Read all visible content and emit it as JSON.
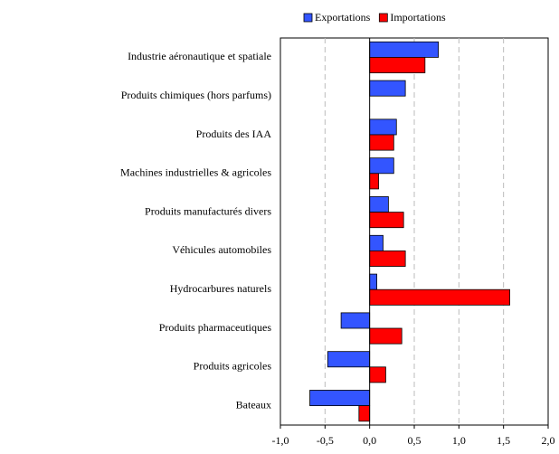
{
  "chart_data": {
    "type": "bar",
    "orientation": "horizontal",
    "categories": [
      "Industrie aéronautique et spatiale",
      "Produits chimiques (hors parfums)",
      "Produits des IAA",
      "Machines industrielles & agricoles",
      "Produits manufacturés divers",
      "Véhicules automobiles",
      "Hydrocarbures naturels",
      "Produits pharmaceutiques",
      "Produits agricoles",
      "Bateaux"
    ],
    "series": [
      {
        "name": "Exportations",
        "color": "#3355ff",
        "values": [
          0.77,
          0.4,
          0.3,
          0.27,
          0.21,
          0.15,
          0.08,
          -0.32,
          -0.47,
          -0.67
        ]
      },
      {
        "name": "Importations",
        "color": "#ff0000",
        "values": [
          0.62,
          0,
          0.27,
          0.1,
          0.38,
          0.4,
          1.57,
          0.36,
          0.18,
          -0.12
        ]
      }
    ],
    "xlim": [
      -1.0,
      2.0
    ],
    "xticks": [
      {
        "value": -1.0,
        "label": "-1,0"
      },
      {
        "value": -0.5,
        "label": "-0,5"
      },
      {
        "value": 0,
        "label": "0,0"
      },
      {
        "value": 0.5,
        "label": "0,5"
      },
      {
        "value": 1.0,
        "label": "1,0"
      },
      {
        "value": 1.5,
        "label": "1,5"
      },
      {
        "value": 2.0,
        "label": "2,0"
      }
    ],
    "grid": true,
    "legend": "top"
  }
}
